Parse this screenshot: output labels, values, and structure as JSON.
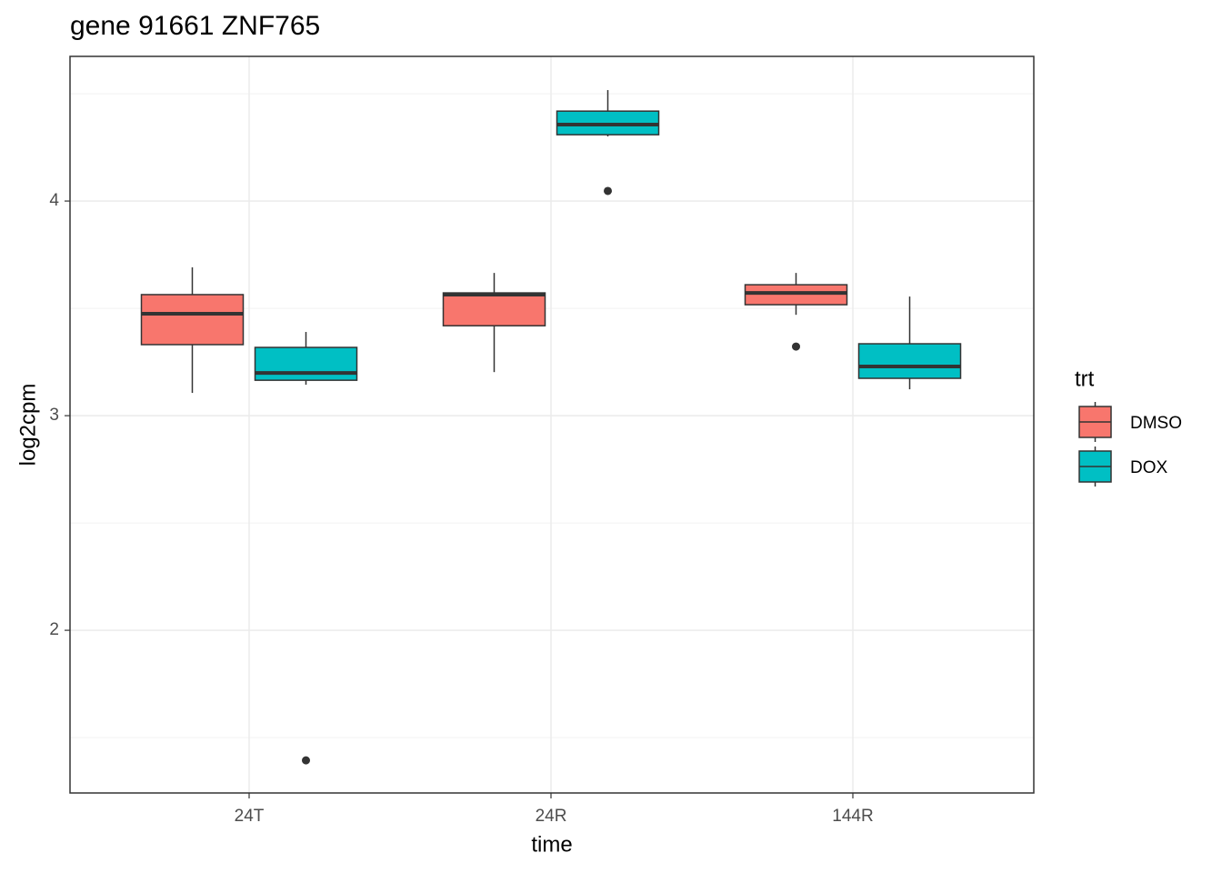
{
  "chart_data": {
    "type": "box",
    "title": "gene 91661 ZNF765",
    "x_label": "time",
    "y_label": "log2cpm",
    "categories": [
      "24T",
      "24R",
      "144R"
    ],
    "legend_title": "trt",
    "legend_position": "right",
    "series": [
      {
        "name": "DMSO",
        "color": "#F8766D",
        "boxes": [
          {
            "min": 3.106,
            "q1": 3.331,
            "median": 3.475,
            "q3": 3.564,
            "max": 3.691,
            "outliers": []
          },
          {
            "min": 3.203,
            "q1": 3.419,
            "median": 3.564,
            "q3": 3.572,
            "max": 3.665,
            "outliers": []
          },
          {
            "min": 3.47,
            "q1": 3.517,
            "median": 3.572,
            "q3": 3.61,
            "max": 3.665,
            "outliers": [
              3.322
            ]
          }
        ]
      },
      {
        "name": "DOX",
        "color": "#00BFC4",
        "boxes": [
          {
            "min": 3.144,
            "q1": 3.165,
            "median": 3.199,
            "q3": 3.318,
            "max": 3.39,
            "outliers": [
              1.394
            ]
          },
          {
            "min": 4.301,
            "q1": 4.309,
            "median": 4.356,
            "q3": 4.419,
            "max": 4.517,
            "outliers": [
              4.047
            ]
          },
          {
            "min": 3.123,
            "q1": 3.174,
            "median": 3.229,
            "q3": 3.335,
            "max": 3.555,
            "outliers": []
          }
        ]
      }
    ],
    "ylim": [
      1.242,
      4.674
    ],
    "yticks": [
      2,
      3,
      4
    ],
    "y_minor_ticks": [
      1.5,
      2.5,
      3.5,
      4.5
    ],
    "grid": true
  }
}
